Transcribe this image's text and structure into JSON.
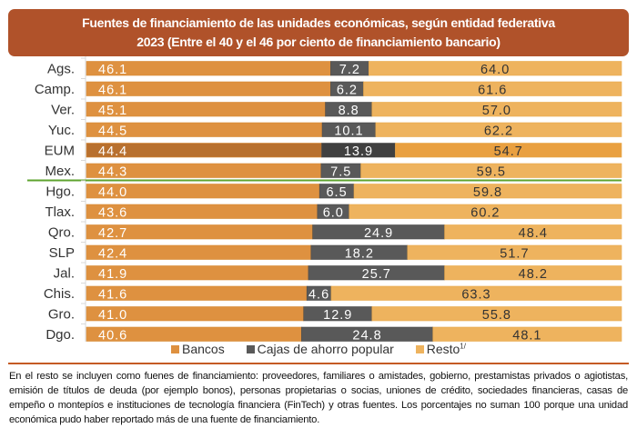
{
  "title": {
    "line1": "Fuentes de financiamiento de las unidades económicas, según entidad federativa",
    "line2": "2023 (Entre el 40 y el 46 por ciento de financiamiento bancario)"
  },
  "colors": {
    "bancos": "#de9140",
    "bancos_highlight": "#b8702e",
    "cajas": "#595959",
    "cajas_highlight": "#404040",
    "resto": "#eeb35e",
    "resto_highlight": "#e9a040",
    "title_bg": "#b0522a",
    "divider": "#5ea32e"
  },
  "chart_data": {
    "type": "bar",
    "orientation": "horizontal",
    "stacked": true,
    "categories": [
      "Ags.",
      "Camp.",
      "Ver.",
      "Yuc.",
      "EUM",
      "Mex.",
      "Hgo.",
      "Tlax.",
      "Qro.",
      "SLP",
      "Jal.",
      "Chis.",
      "Gro.",
      "Dgo."
    ],
    "highlight_category": "EUM",
    "divider_after": "Mex.",
    "series": [
      {
        "name": "Bancos",
        "values": [
          46.1,
          46.1,
          45.1,
          44.5,
          44.4,
          44.3,
          44.0,
          43.6,
          42.7,
          42.4,
          41.9,
          41.6,
          41.0,
          40.6
        ]
      },
      {
        "name": "Cajas de ahorro popular",
        "values": [
          7.2,
          6.2,
          8.8,
          10.1,
          13.9,
          7.5,
          6.5,
          6.0,
          24.9,
          18.2,
          25.7,
          4.6,
          12.9,
          24.8
        ]
      },
      {
        "name": "Resto",
        "values": [
          64.0,
          61.6,
          57.0,
          62.2,
          54.7,
          59.5,
          59.8,
          60.2,
          48.4,
          51.7,
          48.2,
          63.3,
          55.8,
          48.1
        ]
      }
    ],
    "xlim": [
      0,
      101
    ],
    "legend_position": "bottom",
    "grid": false
  },
  "legend": [
    {
      "label": "Bancos",
      "sup": ""
    },
    {
      "label": "Cajas de ahorro popular",
      "sup": ""
    },
    {
      "label": "Resto",
      "sup": "1/"
    }
  ],
  "note": "En el resto se incluyen como fuenes de financiamiento: proveedores, familiares o amistades, gobierno, prestamistas privados o agiotistas, emisión de títulos de deuda (por ejemplo bonos), personas propietarias o socias, uniones de crédito, sociedades financieras, casas de empeño o montepíos e instituciones de tecnología financiera (FinTech) y otras fuentes. Los porcentajes no suman 100 porque una unidad económica pudo haber reportado más de una fuente de financiamiento."
}
